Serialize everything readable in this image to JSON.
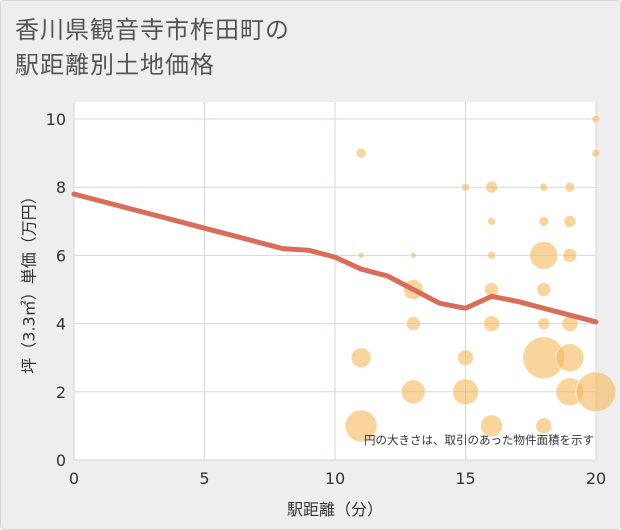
{
  "title": "香川県観音寺市柞田町の\n駅距離別土地価格",
  "chart_data": {
    "type": "scatter",
    "title": "香川県観音寺市柞田町の駅距離別土地価格",
    "xlabel": "駅距離（分）",
    "ylabel": "坪（3.3㎡）単価（万円）",
    "xlim": [
      0,
      20
    ],
    "ylim": [
      0,
      10.5
    ],
    "xticks": [
      0,
      5,
      10,
      15,
      20
    ],
    "yticks": [
      0,
      2,
      4,
      6,
      8,
      10
    ],
    "grid": true,
    "note": "円の大きさは、取引のあった物件面積を示す",
    "colors": {
      "bubble": "#f5b95c",
      "line": "#d96d5a",
      "plot_bg": "#ffffff",
      "grid": "#d0d8e4"
    },
    "bubbles": [
      {
        "x": 11,
        "y": 9,
        "s": 5
      },
      {
        "x": 11,
        "y": 6,
        "s": 3
      },
      {
        "x": 11,
        "y": 3,
        "s": 10
      },
      {
        "x": 11,
        "y": 1,
        "s": 16
      },
      {
        "x": 13,
        "y": 6,
        "s": 3
      },
      {
        "x": 13,
        "y": 5,
        "s": 10
      },
      {
        "x": 13,
        "y": 4,
        "s": 7
      },
      {
        "x": 13,
        "y": 2,
        "s": 12
      },
      {
        "x": 15,
        "y": 8,
        "s": 4
      },
      {
        "x": 15,
        "y": 3,
        "s": 8
      },
      {
        "x": 15,
        "y": 2,
        "s": 13
      },
      {
        "x": 16,
        "y": 8,
        "s": 6
      },
      {
        "x": 16,
        "y": 7,
        "s": 4
      },
      {
        "x": 16,
        "y": 6,
        "s": 4
      },
      {
        "x": 16,
        "y": 5,
        "s": 7
      },
      {
        "x": 16,
        "y": 4,
        "s": 8
      },
      {
        "x": 16,
        "y": 1,
        "s": 11
      },
      {
        "x": 18,
        "y": 8,
        "s": 4
      },
      {
        "x": 18,
        "y": 7,
        "s": 5
      },
      {
        "x": 18,
        "y": 6,
        "s": 14
      },
      {
        "x": 18,
        "y": 5,
        "s": 7
      },
      {
        "x": 18,
        "y": 4,
        "s": 6
      },
      {
        "x": 18,
        "y": 3,
        "s": 21
      },
      {
        "x": 18,
        "y": 1,
        "s": 8
      },
      {
        "x": 19,
        "y": 8,
        "s": 5
      },
      {
        "x": 19,
        "y": 7,
        "s": 6
      },
      {
        "x": 19,
        "y": 6,
        "s": 7
      },
      {
        "x": 19,
        "y": 4,
        "s": 8
      },
      {
        "x": 19,
        "y": 3,
        "s": 14
      },
      {
        "x": 19,
        "y": 2,
        "s": 14
      },
      {
        "x": 20,
        "y": 10,
        "s": 4
      },
      {
        "x": 20,
        "y": 9,
        "s": 4
      },
      {
        "x": 20,
        "y": 2,
        "s": 20
      }
    ],
    "trend": {
      "x": [
        0,
        1,
        2,
        3,
        4,
        5,
        6,
        7,
        8,
        9,
        10,
        11,
        12,
        13,
        14,
        15,
        16,
        17,
        18,
        19,
        20
      ],
      "y": [
        7.8,
        7.6,
        7.4,
        7.2,
        7.0,
        6.8,
        6.6,
        6.4,
        6.2,
        6.15,
        5.95,
        5.6,
        5.4,
        5.0,
        4.6,
        4.45,
        4.8,
        4.65,
        4.45,
        4.25,
        4.05
      ]
    }
  }
}
